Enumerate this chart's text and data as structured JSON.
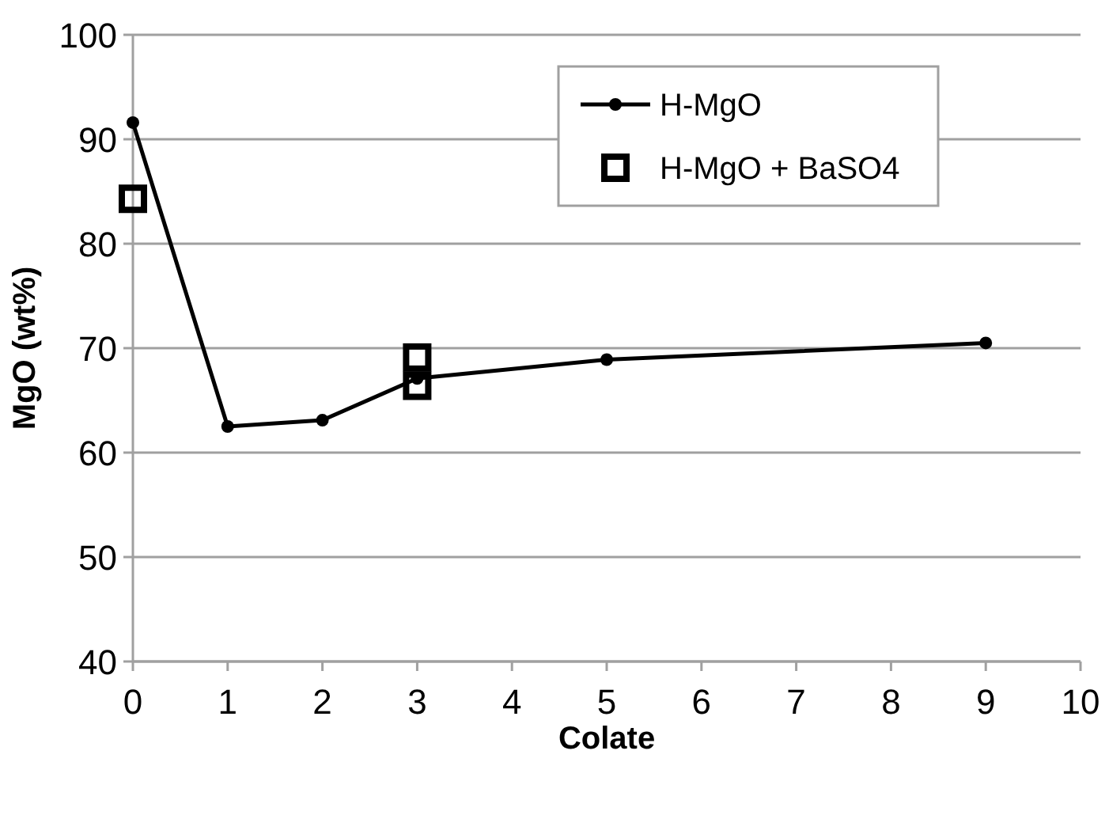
{
  "chart_data": {
    "type": "line",
    "xlabel": "Colate",
    "ylabel": "MgO (wt%)",
    "xlim": [
      0,
      10
    ],
    "xticks": [
      0,
      1,
      2,
      3,
      4,
      5,
      6,
      7,
      8,
      9,
      10
    ],
    "ylim": [
      40,
      100
    ],
    "yticks": [
      40,
      50,
      60,
      70,
      80,
      90,
      100
    ],
    "grid": "y",
    "legend": "top right",
    "series": [
      {
        "name": "H-MgO",
        "color": "#000000",
        "marker": "circle",
        "x": [
          0,
          1,
          2,
          3,
          5,
          9
        ],
        "values": [
          91.6,
          62.5,
          63.1,
          67.1,
          68.9,
          70.5
        ]
      },
      {
        "name": "H-MgO + BaSO4",
        "type": "scatter",
        "color": "#000000",
        "marker": "square",
        "x": [
          0,
          3,
          3
        ],
        "values": [
          84.3,
          69.1,
          66.4
        ]
      }
    ]
  }
}
